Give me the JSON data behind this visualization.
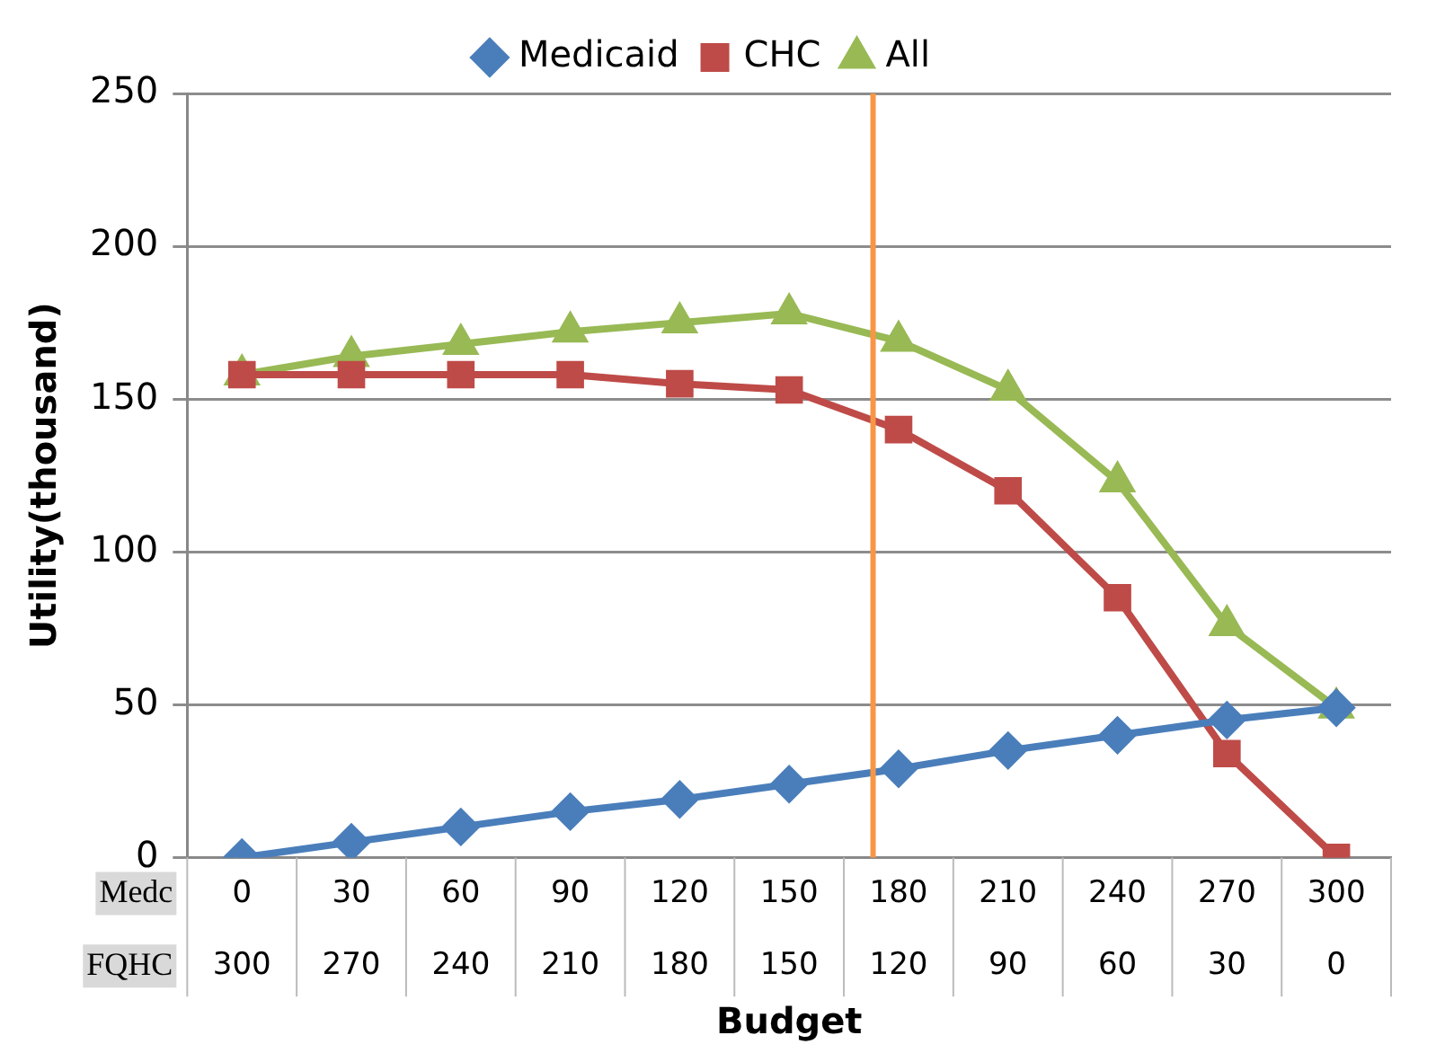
{
  "chart_data": {
    "type": "line",
    "xlabel": "Budget",
    "ylabel": "Utility(thousand)",
    "x": [
      0,
      30,
      60,
      90,
      120,
      150,
      180,
      210,
      240,
      270,
      300
    ],
    "xlim": [
      -15,
      315
    ],
    "xticks": [
      0,
      30,
      60,
      90,
      120,
      150,
      180,
      210,
      240,
      270,
      300
    ],
    "x2lim": [
      315,
      -15
    ],
    "x2ticks": [
      300,
      270,
      240,
      210,
      180,
      150,
      120,
      90,
      60,
      30,
      0
    ],
    "ylim": [
      0,
      250
    ],
    "yticks": [
      0,
      50,
      100,
      150,
      200,
      250
    ],
    "grid": "y",
    "legend": "top",
    "annotations": [
      "Medc",
      "FQHC"
    ],
    "ref_lines": [
      {
        "axis": "x",
        "value": 173,
        "color": "#f79646"
      }
    ],
    "series": [
      {
        "name": "Medicaid",
        "color": "#4a7ebb",
        "marker": "diamond",
        "values": [
          0,
          5,
          10,
          15,
          19,
          24,
          29,
          35,
          40,
          45,
          49
        ]
      },
      {
        "name": "CHC",
        "color": "#be4b48",
        "marker": "square",
        "values": [
          158,
          158,
          158,
          158,
          155,
          153,
          140,
          120,
          85,
          34,
          0
        ]
      },
      {
        "name": "All",
        "color": "#98b954",
        "marker": "triangle",
        "values": [
          158,
          164,
          168,
          172,
          175,
          178,
          169,
          153,
          123,
          76,
          49
        ]
      }
    ]
  }
}
